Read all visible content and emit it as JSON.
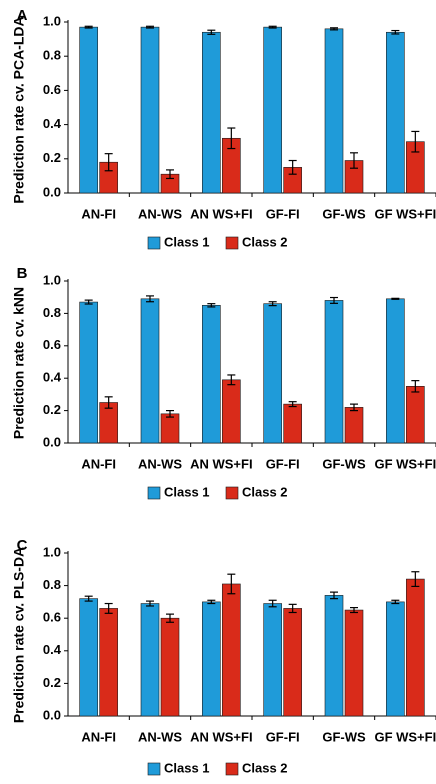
{
  "colors": {
    "class1": "#1F9BD9",
    "class2": "#D92B1A",
    "axis": "#000000"
  },
  "chart_data": [
    {
      "panel_label": "A",
      "type": "bar",
      "categories": [
        "AN-FI",
        "AN-WS",
        "AN WS+FI",
        "GF-FI",
        "GF-WS",
        "GF WS+FI"
      ],
      "ylabel": "Prediction rate cv. PCA-LDA",
      "ylim": [
        0,
        1.0
      ],
      "yticks": [
        "0.0",
        "0.2",
        "0.4",
        "0.6",
        "0.8",
        "1.0"
      ],
      "legend": "bottom-center",
      "grid": false,
      "series": [
        {
          "name": "Class 1",
          "values": [
            0.97,
            0.97,
            0.94,
            0.97,
            0.96,
            0.94
          ],
          "errors": [
            0.005,
            0.005,
            0.012,
            0.005,
            0.006,
            0.01
          ]
        },
        {
          "name": "Class 2",
          "values": [
            0.18,
            0.11,
            0.32,
            0.15,
            0.19,
            0.3
          ],
          "errors": [
            0.05,
            0.025,
            0.06,
            0.04,
            0.045,
            0.06
          ]
        }
      ]
    },
    {
      "panel_label": "B",
      "type": "bar",
      "categories": [
        "AN-FI",
        "AN-WS",
        "AN WS+FI",
        "GF-FI",
        "GF-WS",
        "GF WS+FI"
      ],
      "ylabel": "Prediction rate cv. kNN",
      "ylim": [
        0,
        1.0
      ],
      "yticks": [
        "0.0",
        "0.2",
        "0.4",
        "0.6",
        "0.8",
        "1.0"
      ],
      "legend": "bottom-center",
      "grid": false,
      "series": [
        {
          "name": "Class 1",
          "values": [
            0.87,
            0.89,
            0.85,
            0.86,
            0.88,
            0.89
          ],
          "errors": [
            0.012,
            0.018,
            0.01,
            0.012,
            0.018,
            0.003
          ]
        },
        {
          "name": "Class 2",
          "values": [
            0.25,
            0.18,
            0.39,
            0.24,
            0.22,
            0.35
          ],
          "errors": [
            0.035,
            0.02,
            0.03,
            0.015,
            0.02,
            0.035
          ]
        }
      ]
    },
    {
      "panel_label": "C",
      "type": "bar",
      "categories": [
        "AN-FI",
        "AN-WS",
        "AN WS+FI",
        "GF-FI",
        "GF-WS",
        "GF WS+FI"
      ],
      "ylabel": "Prediction rate cv. PLS-DA",
      "ylim": [
        0,
        1.0
      ],
      "yticks": [
        "0.0",
        "0.2",
        "0.4",
        "0.6",
        "0.8",
        "1.0"
      ],
      "legend": "bottom-center",
      "grid": false,
      "series": [
        {
          "name": "Class 1",
          "values": [
            0.72,
            0.69,
            0.7,
            0.69,
            0.74,
            0.7
          ],
          "errors": [
            0.015,
            0.015,
            0.01,
            0.02,
            0.02,
            0.01
          ]
        },
        {
          "name": "Class 2",
          "values": [
            0.66,
            0.6,
            0.81,
            0.66,
            0.65,
            0.84
          ],
          "errors": [
            0.03,
            0.025,
            0.06,
            0.025,
            0.015,
            0.045
          ]
        }
      ]
    }
  ]
}
